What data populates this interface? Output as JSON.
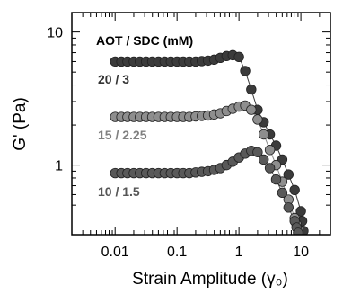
{
  "chart_data": {
    "type": "scatter",
    "xscale": "log",
    "yscale": "log",
    "xlim": [
      0.002,
      30
    ],
    "ylim": [
      0.3,
      14
    ],
    "xlabel": "Strain Amplitude (γ₀)",
    "ylabel": "G' (Pa)",
    "legend_title": "AOT / SDC (mM)",
    "grid": false,
    "x_ticks": [
      {
        "value": 0.01,
        "label": "0.01"
      },
      {
        "value": 0.1,
        "label": "0.1"
      },
      {
        "value": 1,
        "label": "1"
      },
      {
        "value": 10,
        "label": "10"
      }
    ],
    "y_ticks": [
      {
        "value": 1,
        "label": "1"
      },
      {
        "value": 10,
        "label": "10"
      }
    ],
    "series": [
      {
        "name": "20 / 3",
        "color": "#3b3b3b",
        "label_color": "#333333",
        "points": [
          [
            0.01,
            6.0
          ],
          [
            0.0126,
            6.0
          ],
          [
            0.0158,
            6.0
          ],
          [
            0.02,
            6.0
          ],
          [
            0.0251,
            6.0
          ],
          [
            0.0316,
            6.0
          ],
          [
            0.0398,
            6.0
          ],
          [
            0.0501,
            6.0
          ],
          [
            0.0631,
            6.0
          ],
          [
            0.0794,
            6.0
          ],
          [
            0.1,
            6.0
          ],
          [
            0.126,
            6.0
          ],
          [
            0.158,
            6.0
          ],
          [
            0.2,
            6.0
          ],
          [
            0.251,
            6.05
          ],
          [
            0.316,
            6.1
          ],
          [
            0.398,
            6.2
          ],
          [
            0.501,
            6.4
          ],
          [
            0.631,
            6.6
          ],
          [
            0.794,
            6.7
          ],
          [
            1.0,
            6.5
          ],
          [
            1.26,
            5.1
          ],
          [
            1.58,
            3.7
          ],
          [
            2.0,
            2.6
          ],
          [
            2.51,
            2.1
          ],
          [
            3.16,
            1.7
          ],
          [
            3.98,
            1.4
          ],
          [
            5.01,
            1.1
          ],
          [
            6.31,
            0.85
          ],
          [
            7.94,
            0.65
          ],
          [
            10.0,
            0.45
          ],
          [
            10.5,
            0.38
          ],
          [
            11.0,
            0.32
          ]
        ]
      },
      {
        "name": "15 / 2.25",
        "color": "#8e8e8e",
        "label_color": "#808080",
        "points": [
          [
            0.01,
            2.3
          ],
          [
            0.0126,
            2.3
          ],
          [
            0.0158,
            2.3
          ],
          [
            0.02,
            2.3
          ],
          [
            0.0251,
            2.3
          ],
          [
            0.0316,
            2.3
          ],
          [
            0.0398,
            2.3
          ],
          [
            0.0501,
            2.3
          ],
          [
            0.0631,
            2.3
          ],
          [
            0.0794,
            2.3
          ],
          [
            0.1,
            2.3
          ],
          [
            0.126,
            2.3
          ],
          [
            0.158,
            2.3
          ],
          [
            0.2,
            2.32
          ],
          [
            0.251,
            2.34
          ],
          [
            0.316,
            2.36
          ],
          [
            0.398,
            2.4
          ],
          [
            0.501,
            2.45
          ],
          [
            0.631,
            2.55
          ],
          [
            0.794,
            2.65
          ],
          [
            1.0,
            2.75
          ],
          [
            1.26,
            2.8
          ],
          [
            1.58,
            2.6
          ],
          [
            2.0,
            2.2
          ],
          [
            2.51,
            1.7
          ],
          [
            3.16,
            1.3
          ],
          [
            3.98,
            1.0
          ],
          [
            5.01,
            0.75
          ],
          [
            6.31,
            0.55
          ],
          [
            7.94,
            0.4
          ],
          [
            8.5,
            0.36
          ],
          [
            9.0,
            0.33
          ]
        ]
      },
      {
        "name": "10 / 1.5",
        "color": "#595959",
        "label_color": "#555555",
        "points": [
          [
            0.01,
            0.87
          ],
          [
            0.0126,
            0.87
          ],
          [
            0.0158,
            0.87
          ],
          [
            0.02,
            0.87
          ],
          [
            0.0251,
            0.87
          ],
          [
            0.0316,
            0.87
          ],
          [
            0.0398,
            0.87
          ],
          [
            0.0501,
            0.87
          ],
          [
            0.0631,
            0.87
          ],
          [
            0.0794,
            0.87
          ],
          [
            0.1,
            0.87
          ],
          [
            0.126,
            0.87
          ],
          [
            0.158,
            0.87
          ],
          [
            0.2,
            0.88
          ],
          [
            0.251,
            0.89
          ],
          [
            0.316,
            0.9
          ],
          [
            0.398,
            0.92
          ],
          [
            0.501,
            0.95
          ],
          [
            0.631,
            1.0
          ],
          [
            0.794,
            1.06
          ],
          [
            1.0,
            1.14
          ],
          [
            1.26,
            1.22
          ],
          [
            1.58,
            1.28
          ],
          [
            2.0,
            1.25
          ],
          [
            2.51,
            1.1
          ],
          [
            3.16,
            0.95
          ],
          [
            3.98,
            0.78
          ],
          [
            5.01,
            0.62
          ],
          [
            6.31,
            0.48
          ],
          [
            7.94,
            0.38
          ],
          [
            8.5,
            0.34
          ],
          [
            9.0,
            0.31
          ]
        ]
      }
    ]
  }
}
